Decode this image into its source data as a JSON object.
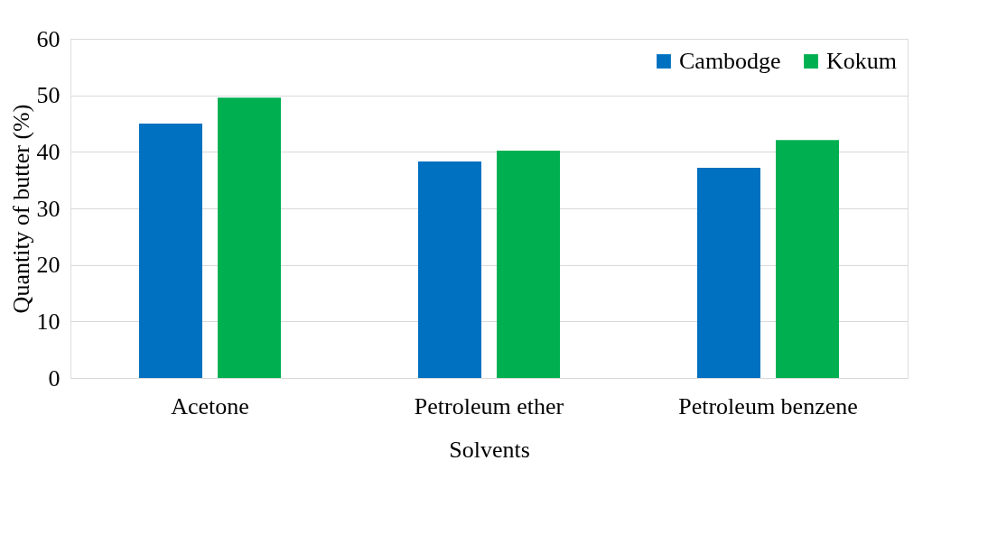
{
  "chart_data": {
    "type": "bar",
    "xlabel": "Solvents",
    "ylabel": "Quantity of butter (%)",
    "categories": [
      "Acetone",
      "Petroleum ether",
      "Petroleum benzene"
    ],
    "series": [
      {
        "name": "Cambodge",
        "color": "#0070c0",
        "values": [
          45.0,
          38.3,
          37.2
        ]
      },
      {
        "name": "Kokum",
        "color": "#00b050",
        "values": [
          49.6,
          40.2,
          42.1
        ]
      }
    ],
    "ylim": [
      0,
      60
    ],
    "yticks": [
      0,
      10,
      20,
      30,
      40,
      50,
      60
    ],
    "grid": "y",
    "legend": "top right"
  }
}
